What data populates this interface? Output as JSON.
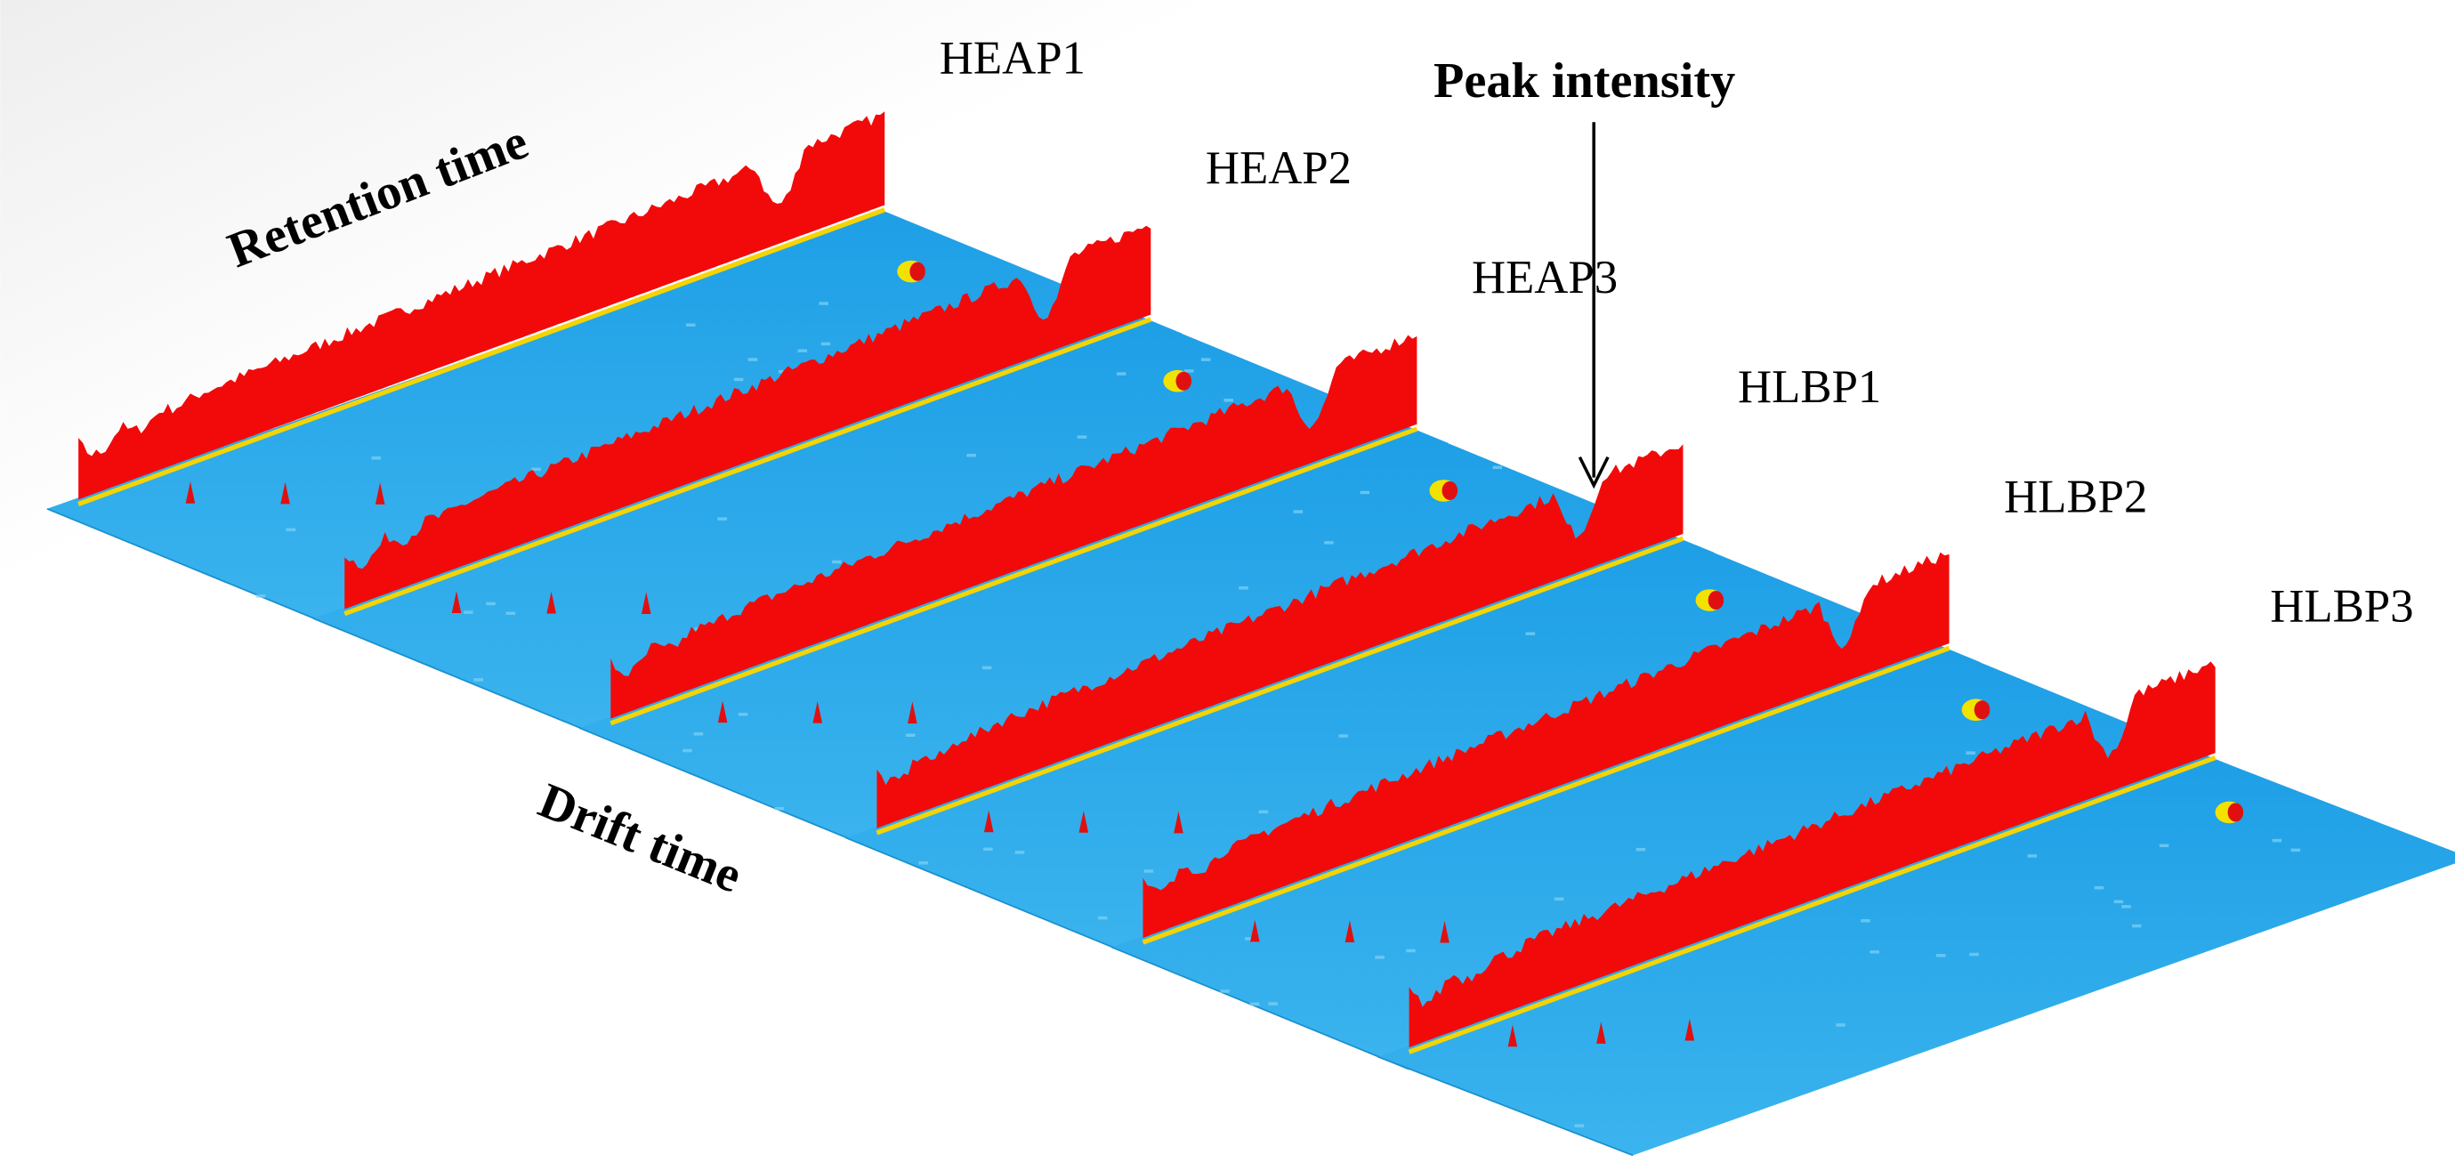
{
  "labels": {
    "retention_axis": "Retention time",
    "drift_axis": "Drift time",
    "peak": "Peak intensity"
  },
  "samples": [
    {
      "label": "HEAP1"
    },
    {
      "label": "HEAP2"
    },
    {
      "label": "HEAP3"
    },
    {
      "label": "HLBP1"
    },
    {
      "label": "HLBP2"
    },
    {
      "label": "HLBP3"
    }
  ]
}
